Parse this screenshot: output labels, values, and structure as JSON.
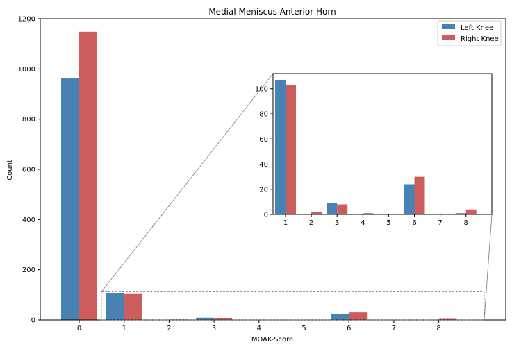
{
  "chart_data": {
    "type": "bar",
    "title": "Medial Meniscus Anterior Horn",
    "xlabel": "MOAK-Score",
    "ylabel": "Count",
    "categories": [
      "0",
      "1",
      "2",
      "3",
      "4",
      "5",
      "6",
      "7",
      "8"
    ],
    "ylim": [
      0,
      1200
    ],
    "yticks": [
      0,
      200,
      400,
      600,
      800,
      1000,
      1200
    ],
    "grid": false,
    "legend_position": "top-right",
    "series": [
      {
        "name": "Left Knee",
        "color": "#4682b4",
        "values": [
          962,
          107,
          0,
          9,
          0,
          0,
          24,
          0,
          1
        ]
      },
      {
        "name": "Right Knee",
        "color": "#cd5c5c",
        "values": [
          1148,
          103,
          2,
          8,
          1,
          0,
          30,
          0,
          4
        ]
      }
    ],
    "inset": {
      "categories": [
        "1",
        "2",
        "3",
        "4",
        "5",
        "6",
        "7",
        "8"
      ],
      "ylim": [
        0,
        112
      ],
      "yticks": [
        0,
        20,
        40,
        60,
        80,
        100
      ]
    }
  }
}
